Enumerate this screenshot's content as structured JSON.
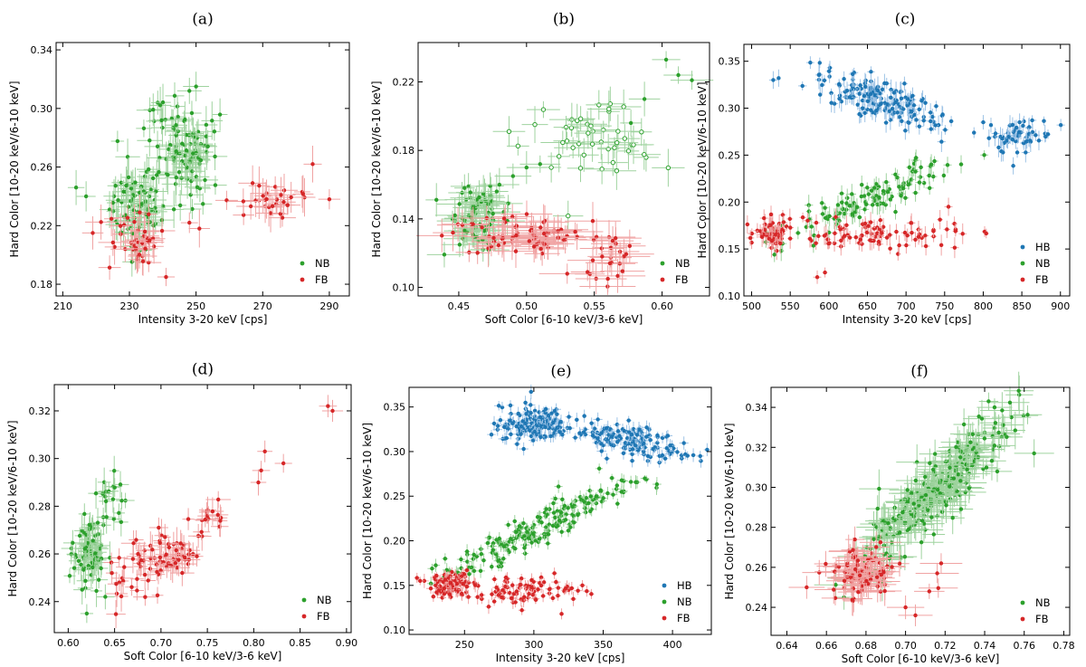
{
  "colors": {
    "HB": "#1f77b4",
    "NB": "#2ca02c",
    "FB": "#d62728",
    "NB_err": "#9fd39f",
    "FB_err": "#f0a3a3",
    "HB_err": "#9dc3e6"
  },
  "chart_data": [
    {
      "panel": "(a)",
      "type": "scatter",
      "xlabel": "Intensity 3-20 keV [cps]",
      "ylabel": "Hard Color [10-20 keV/6-10 keV]",
      "xlim": [
        208,
        296
      ],
      "ylim": [
        0.172,
        0.345
      ],
      "xticks": [
        210,
        230,
        250,
        270,
        290
      ],
      "yticks": [
        0.18,
        0.22,
        0.26,
        0.3,
        0.34
      ],
      "xtick_labels": [
        "210",
        "230",
        "250",
        "270",
        "290"
      ],
      "ytick_labels": [
        "0.18",
        "0.22",
        "0.26",
        "0.30",
        "0.34"
      ],
      "legend": [
        "NB",
        "FB"
      ],
      "series": [
        {
          "name": "NB",
          "clusters": [
            {
              "cx": 232,
              "cy": 0.232,
              "sx": 4.0,
              "sy": 0.014,
              "n": 80,
              "ex": 3.0,
              "ey": 0.01
            },
            {
              "cx": 248,
              "cy": 0.268,
              "sx": 4.5,
              "sy": 0.016,
              "n": 85,
              "ex": 3.0,
              "ey": 0.01
            },
            {
              "cx": 240,
              "cy": 0.29,
              "sx": 4.0,
              "sy": 0.008,
              "n": 15,
              "ex": 3.0,
              "ey": 0.01
            }
          ],
          "points": [
            [
              214,
              0.246
            ],
            [
              217,
              0.24
            ],
            [
              250,
              0.315
            ],
            [
              248,
              0.312
            ]
          ]
        },
        {
          "name": "FB",
          "clusters": [
            {
              "cx": 232,
              "cy": 0.208,
              "sx": 4.0,
              "sy": 0.009,
              "n": 40,
              "ex": 3.5,
              "ey": 0.01
            },
            {
              "cx": 276,
              "cy": 0.238,
              "sx": 8.0,
              "sy": 0.009,
              "n": 30,
              "ex": 3.5,
              "ey": 0.01
            }
          ],
          "points": [
            [
              219,
              0.215
            ],
            [
              285,
              0.262
            ],
            [
              290,
              0.238
            ],
            [
              248,
              0.222
            ],
            [
              251,
              0.218
            ]
          ]
        }
      ]
    },
    {
      "panel": "(b)",
      "type": "scatter",
      "xlabel": "Soft Color [6-10 keV/3-6 keV]",
      "ylabel": "Hard Color [10-20 keV/6-10 keV]",
      "xlim": [
        0.42,
        0.635
      ],
      "ylim": [
        0.095,
        0.243
      ],
      "xticks": [
        0.45,
        0.5,
        0.55,
        0.6
      ],
      "yticks": [
        0.1,
        0.14,
        0.18,
        0.22
      ],
      "xtick_labels": [
        "0.45",
        "0.50",
        "0.55",
        "0.60"
      ],
      "ytick_labels": [
        "0.10",
        "0.14",
        "0.18",
        "0.22"
      ],
      "legend": [
        "NB",
        "FB"
      ],
      "series": [
        {
          "name": "NB",
          "clusters": [
            {
              "cx": 0.462,
              "cy": 0.142,
              "sx": 0.01,
              "sy": 0.009,
              "n": 75,
              "ex": 0.012,
              "ey": 0.008
            },
            {
              "cx": 0.545,
              "cy": 0.19,
              "sx": 0.025,
              "sy": 0.012,
              "n": 45,
              "ex": 0.012,
              "ey": 0.008,
              "hollow": true
            }
          ],
          "points": [
            [
              0.603,
              0.233
            ],
            [
              0.612,
              0.224
            ],
            [
              0.622,
              0.221
            ],
            [
              0.587,
              0.21
            ],
            [
              0.577,
              0.196
            ],
            [
              0.49,
              0.165
            ],
            [
              0.48,
              0.16
            ],
            [
              0.5,
              0.17
            ],
            [
              0.51,
              0.172
            ]
          ]
        },
        {
          "name": "FB",
          "clusters": [
            {
              "cx": 0.5,
              "cy": 0.13,
              "sx": 0.03,
              "sy": 0.006,
              "n": 75,
              "ex": 0.015,
              "ey": 0.008
            },
            {
              "cx": 0.56,
              "cy": 0.118,
              "sx": 0.01,
              "sy": 0.006,
              "n": 20,
              "ex": 0.015,
              "ey": 0.008
            }
          ],
          "points": [
            [
              0.53,
              0.108
            ],
            [
              0.56,
              0.105
            ],
            [
              0.545,
              0.109
            ]
          ]
        }
      ]
    },
    {
      "panel": "(c)",
      "type": "scatter",
      "xlabel": "Intensity 3-20 keV [cps]",
      "ylabel": "Hard Color [10-20 keV/6-10 keV]",
      "xlim": [
        490,
        912
      ],
      "ylim": [
        0.1,
        0.368
      ],
      "xticks": [
        500,
        550,
        600,
        650,
        700,
        750,
        800,
        850,
        900
      ],
      "yticks": [
        0.1,
        0.15,
        0.2,
        0.25,
        0.3,
        0.35
      ],
      "xtick_labels": [
        "500",
        "550",
        "600",
        "650",
        "700",
        "750",
        "800",
        "850",
        "900"
      ],
      "ytick_labels": [
        "0.10",
        "0.15",
        "0.20",
        "0.25",
        "0.30",
        "0.35"
      ],
      "legend": [
        "HB",
        "NB",
        "FB"
      ],
      "series": [
        {
          "name": "HB",
          "clusters": [
            {
              "cx": 665,
              "cy": 0.31,
              "sx": 40,
              "sy": 0.011,
              "n": 170,
              "trend": -0.00027,
              "ex": 4,
              "ey": 0.008
            },
            {
              "cx": 848,
              "cy": 0.27,
              "sx": 20,
              "sy": 0.01,
              "n": 60,
              "ex": 4,
              "ey": 0.008
            }
          ],
          "points": [
            [
              528,
              0.33
            ],
            [
              535,
              0.332
            ],
            [
              800,
              0.285
            ],
            [
              810,
              0.282
            ]
          ]
        },
        {
          "name": "NB",
          "clusters": [
            {
              "cx": 650,
              "cy": 0.203,
              "sx": 55,
              "sy": 0.009,
              "n": 120,
              "trend": 0.00033,
              "ex": 4,
              "ey": 0.008
            }
          ],
          "points": [
            [
              540,
              0.175
            ],
            [
              530,
              0.17
            ]
          ]
        },
        {
          "name": "FB",
          "clusters": [
            {
              "cx": 530,
              "cy": 0.166,
              "sx": 12,
              "sy": 0.007,
              "n": 60,
              "ex": 4,
              "ey": 0.008
            },
            {
              "cx": 660,
              "cy": 0.166,
              "sx": 55,
              "sy": 0.008,
              "n": 90,
              "ex": 4,
              "ey": 0.008
            }
          ],
          "points": [
            [
              585,
              0.12
            ],
            [
              595,
              0.125
            ],
            [
              755,
              0.195
            ]
          ]
        }
      ]
    },
    {
      "panel": "(d)",
      "type": "scatter",
      "xlabel": "Soft Color [6-10 keV/3-6 keV]",
      "ylabel": "Hard Color [10-20 keV/6-10 keV]",
      "xlim": [
        0.585,
        0.905
      ],
      "ylim": [
        0.227,
        0.331
      ],
      "xticks": [
        0.6,
        0.65,
        0.7,
        0.75,
        0.8,
        0.85,
        0.9
      ],
      "yticks": [
        0.24,
        0.26,
        0.28,
        0.3,
        0.32
      ],
      "xtick_labels": [
        "0.60",
        "0.65",
        "0.70",
        "0.75",
        "0.80",
        "0.85",
        "0.90"
      ],
      "ytick_labels": [
        "0.24",
        "0.26",
        "0.28",
        "0.30",
        "0.32"
      ],
      "legend": [
        "NB",
        "FB"
      ],
      "series": [
        {
          "name": "NB",
          "clusters": [
            {
              "cx": 0.622,
              "cy": 0.26,
              "sx": 0.008,
              "sy": 0.006,
              "n": 75,
              "ex": 0.008,
              "ey": 0.005
            },
            {
              "cx": 0.645,
              "cy": 0.283,
              "sx": 0.008,
              "sy": 0.007,
              "n": 20,
              "ex": 0.008,
              "ey": 0.005
            }
          ],
          "points": [
            [
              0.62,
              0.235
            ],
            [
              0.64,
              0.242
            ],
            [
              0.615,
              0.245
            ]
          ]
        },
        {
          "name": "FB",
          "clusters": [
            {
              "cx": 0.7,
              "cy": 0.258,
              "sx": 0.03,
              "sy": 0.006,
              "n": 80,
              "trend": 0.18,
              "ex": 0.01,
              "ey": 0.005
            },
            {
              "cx": 0.755,
              "cy": 0.276,
              "sx": 0.01,
              "sy": 0.004,
              "n": 12,
              "ex": 0.01,
              "ey": 0.005
            }
          ],
          "points": [
            [
              0.885,
              0.32
            ],
            [
              0.88,
              0.322
            ],
            [
              0.812,
              0.303
            ],
            [
              0.832,
              0.298
            ],
            [
              0.808,
              0.295
            ],
            [
              0.805,
              0.29
            ]
          ]
        }
      ]
    },
    {
      "panel": "(e)",
      "type": "scatter",
      "xlabel": "Intensity 3-20 keV [cps]",
      "ylabel": "Hard Color [10-20 keV/6-10 keV]",
      "xlim": [
        210,
        428
      ],
      "ylim": [
        0.095,
        0.372
      ],
      "xticks": [
        250,
        300,
        350,
        400
      ],
      "yticks": [
        0.1,
        0.15,
        0.2,
        0.25,
        0.3,
        0.35
      ],
      "xtick_labels": [
        "250",
        "300",
        "350",
        "400"
      ],
      "ytick_labels": [
        "0.10",
        "0.15",
        "0.20",
        "0.25",
        "0.30",
        "0.35"
      ],
      "legend": [
        "HB",
        "NB",
        "FB"
      ],
      "series": [
        {
          "name": "HB",
          "clusters": [
            {
              "cx": 300,
              "cy": 0.33,
              "sx": 12,
              "sy": 0.01,
              "n": 150,
              "ex": 2.5,
              "ey": 0.006
            },
            {
              "cx": 370,
              "cy": 0.312,
              "sx": 22,
              "sy": 0.009,
              "n": 150,
              "trend": -0.0003,
              "ex": 2.5,
              "ey": 0.006
            }
          ],
          "points": [
            [
              298,
              0.367
            ],
            [
              415,
              0.296
            ],
            [
              420,
              0.295
            ]
          ]
        },
        {
          "name": "NB",
          "clusters": [
            {
              "cx": 305,
              "cy": 0.215,
              "sx": 35,
              "sy": 0.01,
              "n": 200,
              "trend": 0.00078,
              "ex": 2.5,
              "ey": 0.006
            }
          ],
          "points": [
            [
              360,
              0.262
            ],
            [
              370,
              0.266
            ],
            [
              380,
              0.27
            ]
          ]
        },
        {
          "name": "FB",
          "clusters": [
            {
              "cx": 240,
              "cy": 0.15,
              "sx": 8,
              "sy": 0.007,
              "n": 90,
              "ex": 2.5,
              "ey": 0.006
            },
            {
              "cx": 290,
              "cy": 0.145,
              "sx": 20,
              "sy": 0.008,
              "n": 90,
              "ex": 2.5,
              "ey": 0.006
            }
          ],
          "points": [
            [
              218,
              0.155
            ],
            [
              335,
              0.15
            ],
            [
              320,
              0.118
            ]
          ]
        }
      ]
    },
    {
      "panel": "(f)",
      "type": "scatter",
      "xlabel": "Soft Color [6-10 keV/3-6 keV]",
      "ylabel": "Hard Color [10-20 keV/6-10 keV]",
      "xlim": [
        0.632,
        0.783
      ],
      "ylim": [
        0.226,
        0.35
      ],
      "xticks": [
        0.64,
        0.66,
        0.68,
        0.7,
        0.72,
        0.74,
        0.76,
        0.78
      ],
      "yticks": [
        0.24,
        0.26,
        0.28,
        0.3,
        0.32,
        0.34
      ],
      "xtick_labels": [
        "0.64",
        "0.66",
        "0.68",
        "0.70",
        "0.72",
        "0.74",
        "0.76",
        "0.78"
      ],
      "ytick_labels": [
        "0.24",
        "0.26",
        "0.28",
        "0.30",
        "0.32",
        "0.34"
      ],
      "legend": [
        "NB",
        "FB"
      ],
      "series": [
        {
          "name": "NB",
          "clusters": [
            {
              "cx": 0.715,
              "cy": 0.298,
              "sx": 0.018,
              "sy": 0.009,
              "n": 260,
              "trend": 0.9,
              "ex": 0.008,
              "ey": 0.007
            }
          ],
          "points": [
            [
              0.742,
              0.343
            ],
            [
              0.745,
              0.34
            ],
            [
              0.765,
              0.317
            ]
          ]
        },
        {
          "name": "FB",
          "clusters": [
            {
              "cx": 0.678,
              "cy": 0.256,
              "sx": 0.009,
              "sy": 0.007,
              "n": 90,
              "ex": 0.008,
              "ey": 0.006
            }
          ],
          "points": [
            [
              0.705,
              0.236
            ],
            [
              0.7,
              0.24
            ],
            [
              0.65,
              0.25
            ],
            [
              0.718,
              0.262
            ],
            [
              0.716,
              0.257
            ],
            [
              0.712,
              0.248
            ]
          ]
        }
      ]
    }
  ]
}
